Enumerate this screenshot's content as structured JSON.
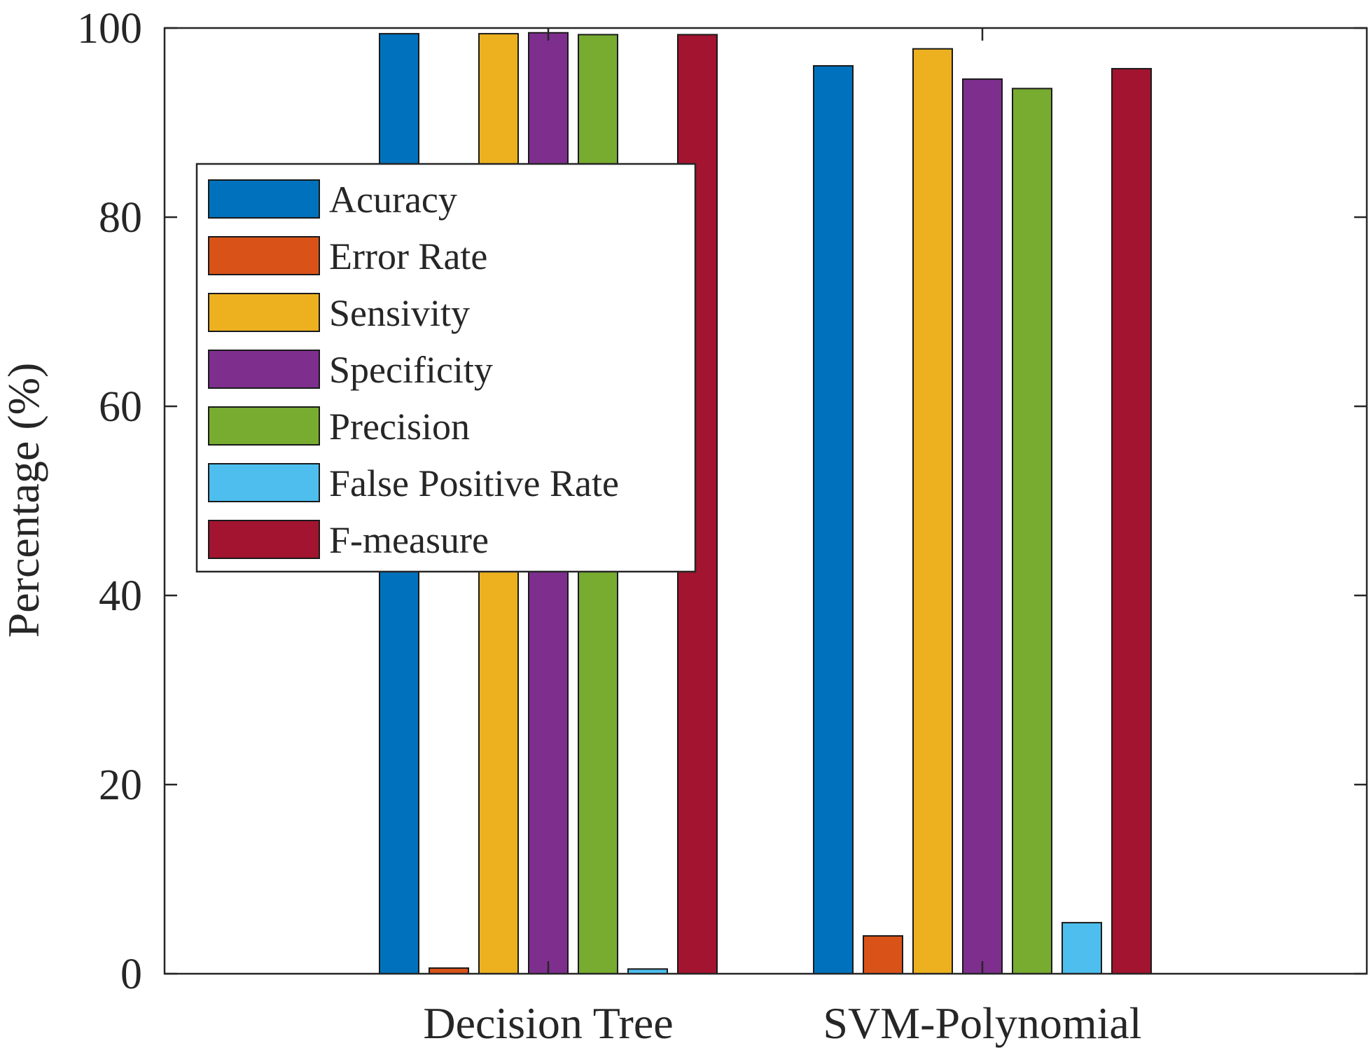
{
  "chart_data": {
    "type": "bar",
    "title": "",
    "xlabel": "",
    "ylabel": "Percentage (%)",
    "ylim": [
      0,
      100
    ],
    "yticks": [
      0,
      20,
      40,
      60,
      80,
      100
    ],
    "grid": false,
    "legend_position": "upper-left",
    "categories": [
      "Decision Tree",
      "SVM-Polynomial"
    ],
    "series": [
      {
        "name": "Acuracy",
        "color": "#0072BD",
        "values": [
          99.4,
          96.0
        ]
      },
      {
        "name": "Error Rate",
        "color": "#D95319",
        "values": [
          0.6,
          4.0
        ]
      },
      {
        "name": "Sensivity",
        "color": "#EDB120",
        "values": [
          99.4,
          97.8
        ]
      },
      {
        "name": "Specificity",
        "color": "#7E2F8E",
        "values": [
          99.5,
          94.6
        ]
      },
      {
        "name": "Precision",
        "color": "#77AC30",
        "values": [
          99.3,
          93.6
        ]
      },
      {
        "name": "False Positive Rate",
        "color": "#4DBEEE",
        "values": [
          0.5,
          5.4
        ]
      },
      {
        "name": "F-measure",
        "color": "#A2142F",
        "values": [
          99.3,
          95.7
        ]
      }
    ]
  }
}
